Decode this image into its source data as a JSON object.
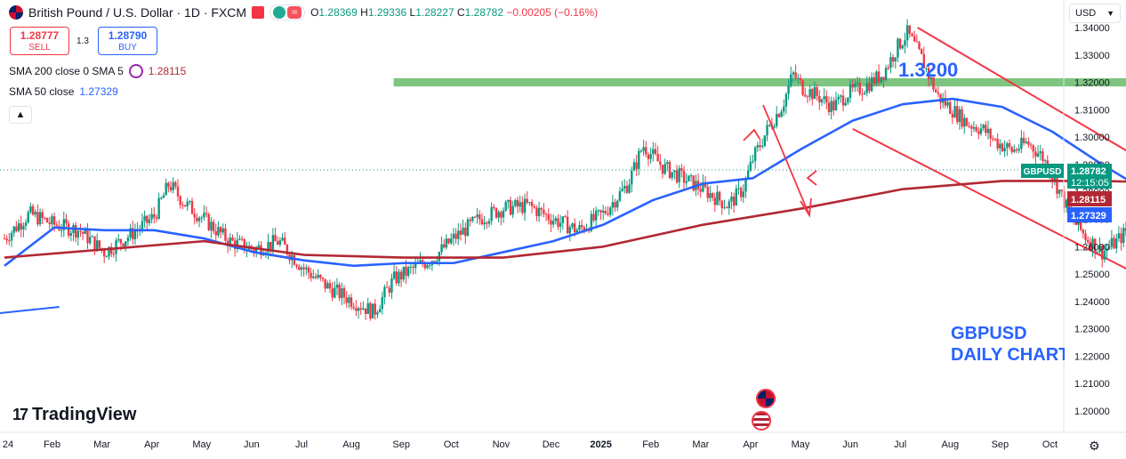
{
  "header": {
    "symbol_title": "British Pound / U.S. Dollar · 1D · FXCM",
    "ohlc": {
      "o_label": "O",
      "o": "1.28369",
      "h_label": "H",
      "h": "1.29336",
      "l_label": "L",
      "l": "1.28227",
      "c_label": "C",
      "c": "1.28782",
      "change": "−0.00205 (−0.16%)"
    },
    "pill_symbol": "≈"
  },
  "trade": {
    "sell_price": "1.28777",
    "sell_label": "SELL",
    "spread": "1.3",
    "buy_price": "1.28790",
    "buy_label": "BUY"
  },
  "indicators": [
    {
      "label": "SMA 200 close 0 SMA 5",
      "value": "1.28115",
      "color": "#b22833"
    },
    {
      "label": "SMA 50 close",
      "value": "1.27329",
      "color": "#2962ff"
    }
  ],
  "collapse_icon": "chevron-up-icon",
  "currency_button": "USD",
  "branding": "TradingView",
  "annotations": {
    "level_label": "1.3200",
    "daily_chart_line1": "GBPUSD",
    "daily_chart_line2": "DAILY CHART"
  },
  "price_tags": {
    "symbol": "GBPUSD",
    "price": "1.28782",
    "countdown": "12:15:05",
    "sma200": "1.28115",
    "sma50": "1.27329"
  },
  "colors": {
    "up": "#089981",
    "down": "#f23645",
    "sma50": "#2962ff",
    "sma200": "#b22833",
    "resistance_zone": "#66bb6a",
    "drawing": "#f23645"
  },
  "chart_data": {
    "type": "candlestick",
    "y_axis": {
      "min": 1.195,
      "max": 1.345,
      "ticks": [
        "1.20000",
        "1.21000",
        "1.22000",
        "1.23000",
        "1.24000",
        "1.25000",
        "1.26000",
        "1.27000",
        "1.28000",
        "1.29000",
        "1.30000",
        "1.31000",
        "1.32000",
        "1.33000",
        "1.34000"
      ]
    },
    "x_axis": {
      "ticks": [
        "24",
        "Feb",
        "Mar",
        "Apr",
        "May",
        "Jun",
        "Jul",
        "Aug",
        "Sep",
        "Oct",
        "Nov",
        "Dec",
        "2025",
        "Feb",
        "Mar",
        "Apr",
        "May",
        "Jun",
        "Jul",
        "Aug",
        "Sep",
        "Oct"
      ]
    },
    "price_path_close": [
      [
        0,
        1.263
      ],
      [
        0.5,
        1.272
      ],
      [
        1,
        1.268
      ],
      [
        1.5,
        1.266
      ],
      [
        2,
        1.258
      ],
      [
        2.5,
        1.264
      ],
      [
        3,
        1.271
      ],
      [
        3.3,
        1.283
      ],
      [
        3.6,
        1.276
      ],
      [
        4,
        1.27
      ],
      [
        4.5,
        1.262
      ],
      [
        5,
        1.259
      ],
      [
        5.5,
        1.262
      ],
      [
        6,
        1.252
      ],
      [
        6.5,
        1.245
      ],
      [
        7,
        1.24
      ],
      [
        7.4,
        1.236
      ],
      [
        7.8,
        1.248
      ],
      [
        8.2,
        1.252
      ],
      [
        8.6,
        1.256
      ],
      [
        9,
        1.263
      ],
      [
        9.5,
        1.27
      ],
      [
        10,
        1.274
      ],
      [
        10.5,
        1.275
      ],
      [
        11,
        1.27
      ],
      [
        11.5,
        1.266
      ],
      [
        12,
        1.272
      ],
      [
        12.5,
        1.283
      ],
      [
        12.8,
        1.297
      ],
      [
        13.2,
        1.289
      ],
      [
        13.6,
        1.285
      ],
      [
        14,
        1.281
      ],
      [
        14.5,
        1.275
      ],
      [
        14.8,
        1.281
      ],
      [
        15,
        1.292
      ],
      [
        15.3,
        1.303
      ],
      [
        15.6,
        1.312
      ],
      [
        15.8,
        1.323
      ],
      [
        16,
        1.318
      ],
      [
        16.3,
        1.315
      ],
      [
        16.6,
        1.311
      ],
      [
        16.9,
        1.316
      ],
      [
        17.2,
        1.318
      ],
      [
        17.6,
        1.323
      ],
      [
        17.9,
        1.333
      ],
      [
        18.1,
        1.338
      ],
      [
        18.4,
        1.328
      ],
      [
        18.7,
        1.315
      ],
      [
        19,
        1.31
      ],
      [
        19.3,
        1.305
      ],
      [
        19.6,
        1.303
      ],
      [
        19.9,
        1.298
      ],
      [
        20.2,
        1.295
      ],
      [
        20.5,
        1.298
      ],
      [
        20.8,
        1.293
      ],
      [
        21.1,
        1.282
      ],
      [
        21.4,
        1.27
      ],
      [
        21.7,
        1.263
      ],
      [
        22,
        1.258
      ],
      [
        22.3,
        1.262
      ],
      [
        22.6,
        1.268
      ],
      [
        22.9,
        1.272
      ],
      [
        23.2,
        1.268
      ],
      [
        23.5,
        1.262
      ],
      [
        23.8,
        1.253
      ],
      [
        24.1,
        1.247
      ],
      [
        24.4,
        1.237
      ],
      [
        24.6,
        1.224
      ],
      [
        24.8,
        1.218
      ],
      [
        25,
        1.224
      ],
      [
        25.3,
        1.236
      ],
      [
        25.6,
        1.244
      ],
      [
        25.9,
        1.248
      ],
      [
        26.2,
        1.238
      ],
      [
        26.5,
        1.242
      ],
      [
        26.8,
        1.247
      ],
      [
        27.1,
        1.26
      ],
      [
        27.4,
        1.263
      ],
      [
        27.7,
        1.258
      ],
      [
        27.9,
        1.27
      ],
      [
        28.1,
        1.287
      ],
      [
        28.3,
        1.291
      ],
      [
        28.6,
        1.295
      ],
      [
        28.9,
        1.297
      ],
      [
        29.2,
        1.292
      ],
      [
        29.5,
        1.298
      ],
      [
        29.8,
        1.292
      ],
      [
        30,
        1.3
      ],
      [
        30.2,
        1.311
      ],
      [
        30.4,
        1.296
      ],
      [
        30.6,
        1.287
      ]
    ],
    "series": [
      {
        "name": "SMA 50 close",
        "color": "#2962ff",
        "points": [
          [
            0,
            1.253
          ],
          [
            1,
            1.267
          ],
          [
            2,
            1.266
          ],
          [
            3,
            1.266
          ],
          [
            4,
            1.263
          ],
          [
            5,
            1.258
          ],
          [
            6,
            1.255
          ],
          [
            7,
            1.253
          ],
          [
            8,
            1.254
          ],
          [
            9,
            1.254
          ],
          [
            10,
            1.258
          ],
          [
            11,
            1.262
          ],
          [
            12,
            1.268
          ],
          [
            13,
            1.277
          ],
          [
            14,
            1.283
          ],
          [
            15,
            1.285
          ],
          [
            16,
            1.296
          ],
          [
            17,
            1.306
          ],
          [
            18,
            1.312
          ],
          [
            19,
            1.314
          ],
          [
            20,
            1.311
          ],
          [
            21,
            1.302
          ],
          [
            22,
            1.29
          ],
          [
            23,
            1.279
          ],
          [
            24,
            1.265
          ],
          [
            25,
            1.254
          ],
          [
            26,
            1.248
          ],
          [
            27,
            1.245
          ],
          [
            28,
            1.25
          ],
          [
            29,
            1.265
          ],
          [
            30,
            1.273
          ]
        ]
      },
      {
        "name": "SMA 200 close 0 SMA 5",
        "color": "#b22833",
        "points": [
          [
            0,
            1.256
          ],
          [
            2,
            1.259
          ],
          [
            4,
            1.262
          ],
          [
            6,
            1.257
          ],
          [
            8,
            1.256
          ],
          [
            10,
            1.256
          ],
          [
            12,
            1.26
          ],
          [
            14,
            1.268
          ],
          [
            16,
            1.274
          ],
          [
            18,
            1.281
          ],
          [
            20,
            1.284
          ],
          [
            22,
            1.284
          ],
          [
            24,
            1.283
          ],
          [
            26,
            1.281
          ],
          [
            28,
            1.28
          ],
          [
            30,
            1.281
          ]
        ]
      },
      {
        "name": "",
        "color": "#2962ff",
        "points": [
          [
            -1,
            1.234
          ],
          [
            1.1,
            1.238
          ]
        ]
      }
    ],
    "resistance_zone": {
      "low": 1.3185,
      "high": 1.3215,
      "from": 7.8,
      "to": 38.5
    },
    "drawn_lines": [
      [
        [
          17.0,
          1.303
        ],
        [
          25.7,
          1.222
        ]
      ],
      [
        [
          18.3,
          1.34
        ],
        [
          27.8,
          1.238
        ]
      ],
      [
        [
          25.0,
          1.208
        ],
        [
          31.2,
          1.33
        ]
      ],
      [
        [
          25.0,
          1.233
        ],
        [
          34.3,
          1.33
        ]
      ],
      [
        [
          24.7,
          1.21
        ],
        [
          25.8,
          1.202
        ]
      ]
    ],
    "grid": false,
    "legend": "top-left"
  }
}
